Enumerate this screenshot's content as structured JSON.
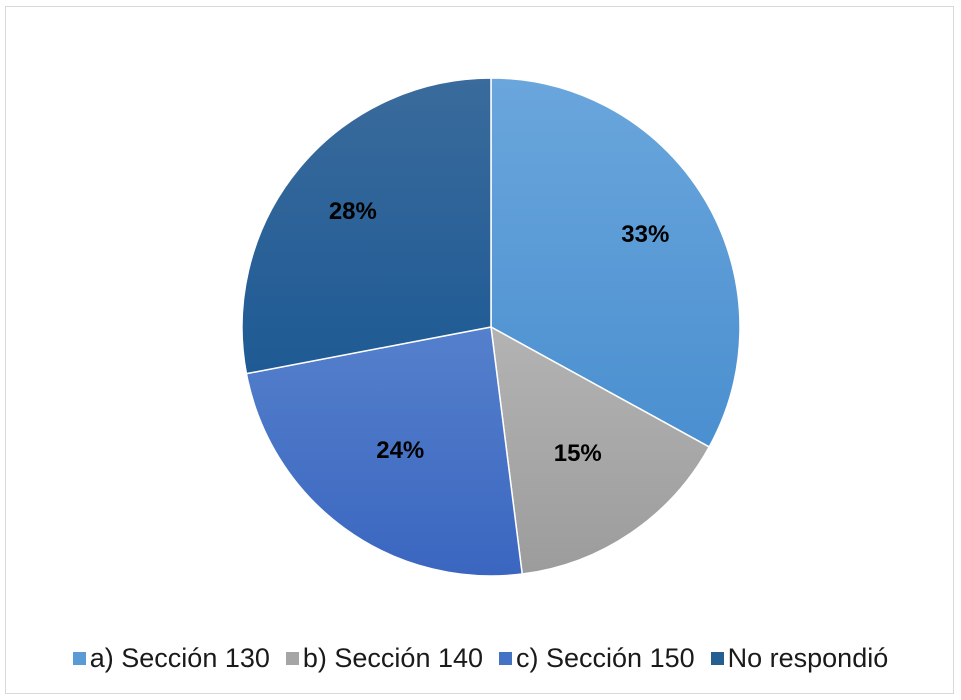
{
  "chart_data": {
    "type": "pie",
    "slices": [
      {
        "label": "a) Sección 130",
        "value": 33,
        "display": "33%",
        "color": "#5b9bd5"
      },
      {
        "label": "b) Sección 140",
        "value": 15,
        "display": "15%",
        "color": "#a5a5a5"
      },
      {
        "label": "c) Sección 150",
        "value": 24,
        "display": "24%",
        "color": "#4472c4"
      },
      {
        "label": "No respondió",
        "value": 28,
        "display": "28%",
        "color": "#255e91"
      }
    ],
    "start_angle": "top",
    "direction": "clockwise",
    "legend_position": "bottom"
  }
}
